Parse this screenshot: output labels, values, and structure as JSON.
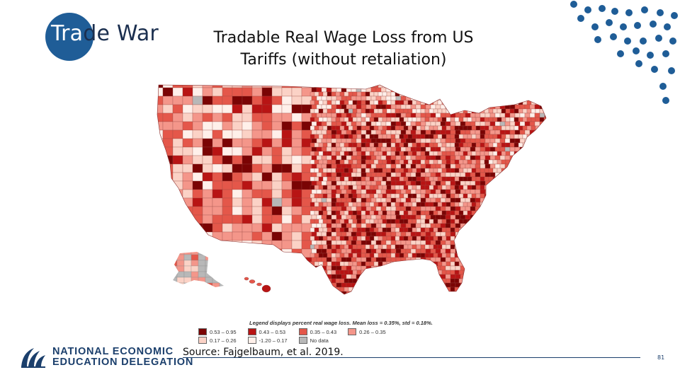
{
  "section": {
    "title_part1": "Tra",
    "title_part2": "de War"
  },
  "slide": {
    "title": "Tradable Real Wage Loss from US Tariffs (without retaliation)"
  },
  "map": {
    "palette": [
      "#7a0404",
      "#b81414",
      "#e4574a",
      "#f4968a",
      "#fbd2c6",
      "#fff0ea",
      "#b8b8b8"
    ]
  },
  "legend": {
    "title": "Legend displays percent real wage loss. Mean loss = 0.35%, std = 0.18%.",
    "items": [
      {
        "label": "0.53 – 0.95",
        "color": "#7a0404"
      },
      {
        "label": "0.43 – 0.53",
        "color": "#b81414"
      },
      {
        "label": "0.35 – 0.43",
        "color": "#e4574a"
      },
      {
        "label": "0.26 – 0.35",
        "color": "#f4968a"
      },
      {
        "label": "0.17 – 0.26",
        "color": "#fbd2c6"
      },
      {
        "label": "-1.20 – 0.17",
        "color": "#fff0ea"
      },
      {
        "label": "No data",
        "color": "#b8b8b8"
      }
    ]
  },
  "footer": {
    "source": "Source:  Fajgelbaum, et al. 2019.",
    "page_number": "81",
    "logo_line1": "NATIONAL ECONOMIC",
    "logo_line2": "EDUCATION DELEGATION"
  },
  "colors": {
    "accent": "#1f5d97",
    "brand": "#1b3f6c"
  }
}
